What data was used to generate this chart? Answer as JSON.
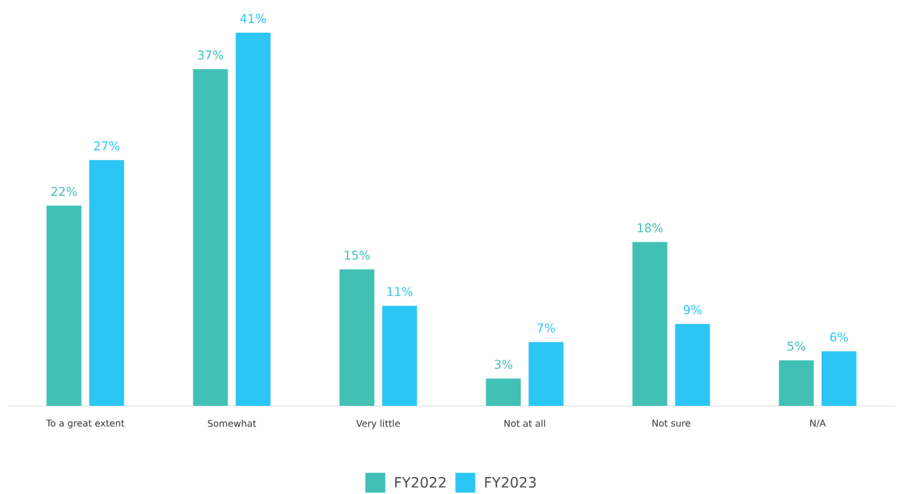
{
  "chart_data": {
    "type": "bar",
    "categories": [
      "To a great extent",
      "Somewhat",
      "Very little",
      "Not at all",
      "Not sure",
      "N/A"
    ],
    "series": [
      {
        "name": "FY2022",
        "color": "#41c0b6",
        "values": [
          22,
          37,
          15,
          3,
          18,
          5
        ],
        "value_labels": [
          "22%",
          "37%",
          "15%",
          "3%",
          "18%",
          "5%"
        ]
      },
      {
        "name": "FY2023",
        "color": "#2bc6f4",
        "values": [
          27,
          41,
          11,
          7,
          9,
          6
        ],
        "value_labels": [
          "27%",
          "41%",
          "11%",
          "7%",
          "9%",
          "6%"
        ]
      }
    ],
    "legend": "bottom"
  }
}
